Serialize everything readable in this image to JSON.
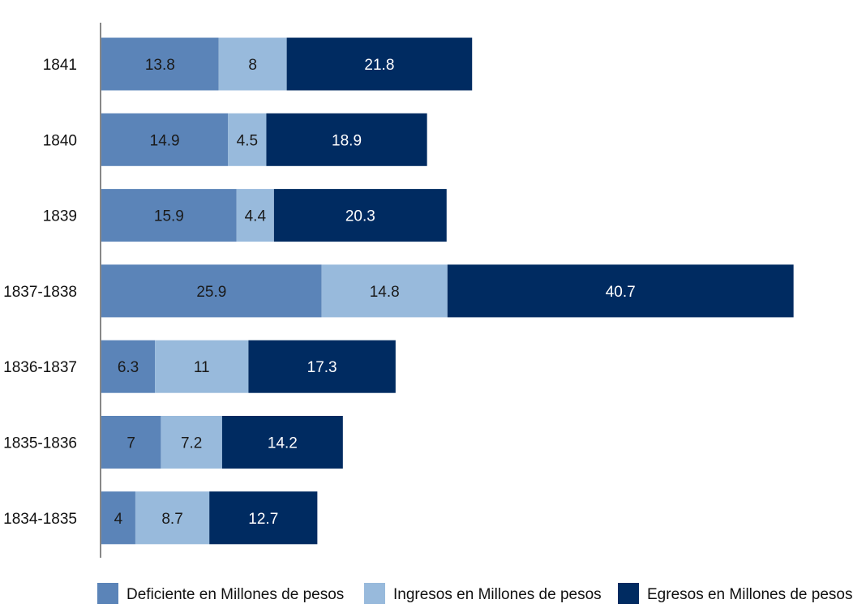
{
  "chart_data": {
    "type": "bar",
    "orientation": "horizontal",
    "stacked": true,
    "categories": [
      "1841",
      "1840",
      "1839",
      "1837-1838",
      "1836-1837",
      "1835-1836",
      "1834-1835"
    ],
    "series": [
      {
        "name": "Deficiente en Millones de pesos",
        "values": [
          13.8,
          14.9,
          15.9,
          25.9,
          6.3,
          7,
          4
        ],
        "color": "#5B84B8",
        "label_color": "#1a1a1a"
      },
      {
        "name": "Ingresos en Millones de pesos",
        "values": [
          8,
          4.5,
          4.4,
          14.8,
          11,
          7.2,
          8.7
        ],
        "color": "#98BADC",
        "label_color": "#1a1a1a"
      },
      {
        "name": "Egresos en Millones de pesos",
        "values": [
          21.8,
          18.9,
          20.3,
          40.7,
          17.3,
          14.2,
          12.7
        ],
        "color": "#002B61",
        "label_color": "#ffffff"
      }
    ],
    "data_labels": true,
    "legend": "bottom",
    "grid": false,
    "xlim": [
      0,
      90
    ]
  }
}
